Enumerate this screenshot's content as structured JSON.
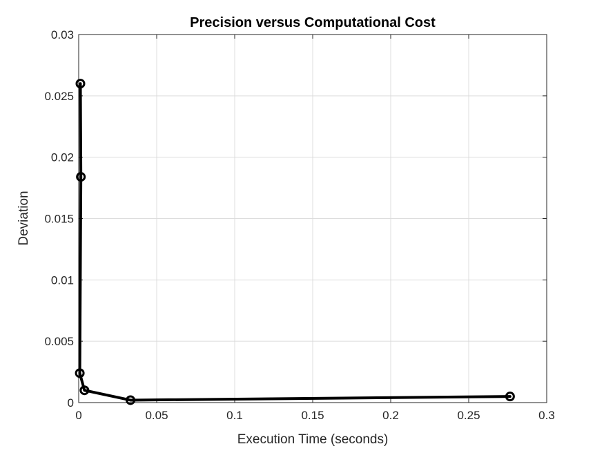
{
  "chart_data": {
    "type": "line",
    "title": "Precision versus Computational Cost",
    "xlabel": "Execution Time (seconds)",
    "ylabel": "Deviation",
    "xlim": [
      0,
      0.3
    ],
    "ylim": [
      0,
      0.03
    ],
    "x_ticks": [
      0,
      0.05,
      0.1,
      0.15,
      0.2,
      0.25,
      0.3
    ],
    "x_tick_labels": [
      "0",
      "0.05",
      "0.1",
      "0.15",
      "0.2",
      "0.25",
      "0.3"
    ],
    "y_ticks": [
      0,
      0.005,
      0.01,
      0.015,
      0.02,
      0.025,
      0.03
    ],
    "y_tick_labels": [
      "0",
      "0.005",
      "0.01",
      "0.015",
      "0.02",
      "0.025",
      "0.03"
    ],
    "grid": true,
    "legend": "none",
    "marker": "circle",
    "series": [
      {
        "color": "#000000",
        "x": [
          0.0011,
          0.0014,
          0.0007,
          0.0037,
          0.0332,
          0.2765
        ],
        "y": [
          0.026,
          0.0184,
          0.0024,
          0.001,
          0.0002,
          0.0005
        ]
      }
    ]
  }
}
